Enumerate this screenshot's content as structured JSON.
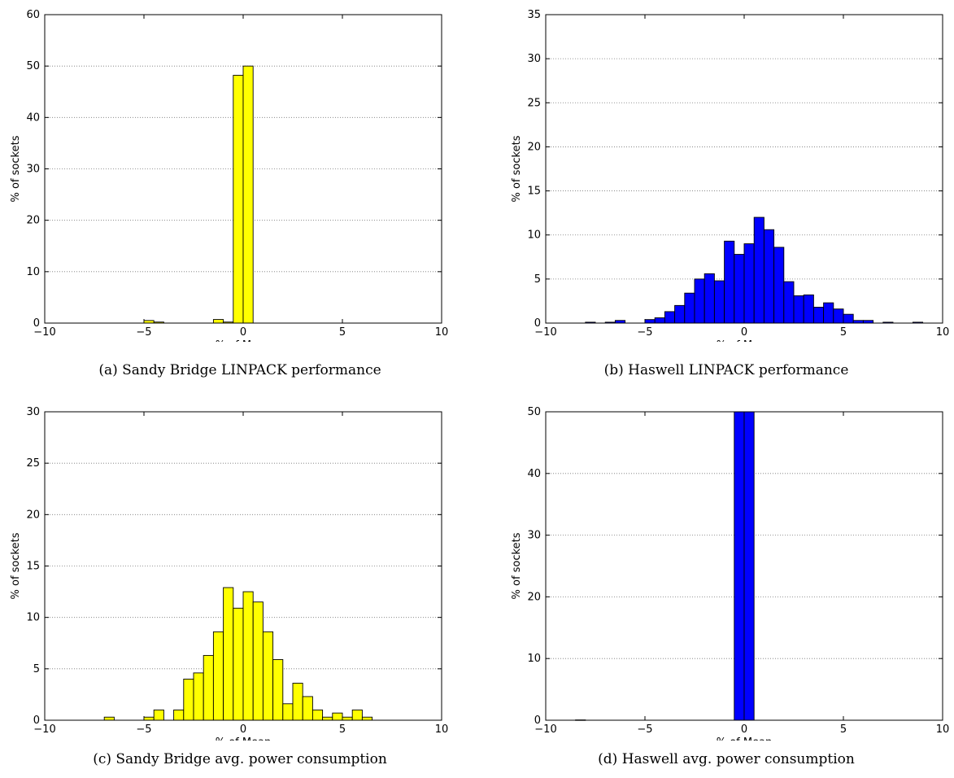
{
  "colors": {
    "yellow": "#ffff00",
    "blue": "#0000ff",
    "edge": "#000000",
    "grid": "#777777"
  },
  "chart_data": [
    {
      "type": "bar",
      "caption": "(a) Sandy Bridge LINPACK performance",
      "xlabel": "% of Mean",
      "ylabel": "% of sockets",
      "xlim": [
        -10,
        10
      ],
      "ylim": [
        0,
        60
      ],
      "xticks": [
        "−10",
        "−5",
        "0",
        "5",
        "10"
      ],
      "yticks": [
        "0",
        "10",
        "20",
        "30",
        "40",
        "50",
        "60"
      ],
      "grid": "horizontal dotted",
      "color": "yellow",
      "bin_width": 0.5,
      "bins": [
        {
          "x0": -5.0,
          "value": 0.5
        },
        {
          "x0": -4.5,
          "value": 0.2
        },
        {
          "x0": -1.5,
          "value": 0.7
        },
        {
          "x0": -1.0,
          "value": 0.2
        },
        {
          "x0": -0.5,
          "value": 48.2
        },
        {
          "x0": 0.0,
          "value": 50.0
        }
      ]
    },
    {
      "type": "bar",
      "caption": "(b) Haswell LINPACK performance",
      "xlabel": "% of Mean",
      "ylabel": "% of sockets",
      "xlim": [
        -10,
        10
      ],
      "ylim": [
        0,
        35
      ],
      "xticks": [
        "−10",
        "−5",
        "0",
        "5",
        "10"
      ],
      "yticks": [
        "0",
        "5",
        "10",
        "15",
        "20",
        "25",
        "30",
        "35"
      ],
      "grid": "horizontal dotted",
      "color": "blue",
      "bin_width": 0.5,
      "bins": [
        {
          "x0": -8.0,
          "value": 0.1
        },
        {
          "x0": -7.0,
          "value": 0.1
        },
        {
          "x0": -6.5,
          "value": 0.3
        },
        {
          "x0": -5.0,
          "value": 0.4
        },
        {
          "x0": -4.5,
          "value": 0.6
        },
        {
          "x0": -4.0,
          "value": 1.3
        },
        {
          "x0": -3.5,
          "value": 2.0
        },
        {
          "x0": -3.0,
          "value": 3.4
        },
        {
          "x0": -2.5,
          "value": 5.0
        },
        {
          "x0": -2.0,
          "value": 5.6
        },
        {
          "x0": -1.5,
          "value": 4.8
        },
        {
          "x0": -1.0,
          "value": 9.3
        },
        {
          "x0": -0.5,
          "value": 7.8
        },
        {
          "x0": 0.0,
          "value": 9.0
        },
        {
          "x0": 0.5,
          "value": 12.0
        },
        {
          "x0": 1.0,
          "value": 10.6
        },
        {
          "x0": 1.5,
          "value": 8.6
        },
        {
          "x0": 2.0,
          "value": 4.7
        },
        {
          "x0": 2.5,
          "value": 3.1
        },
        {
          "x0": 3.0,
          "value": 3.2
        },
        {
          "x0": 3.5,
          "value": 1.8
        },
        {
          "x0": 4.0,
          "value": 2.3
        },
        {
          "x0": 4.5,
          "value": 1.6
        },
        {
          "x0": 5.0,
          "value": 1.0
        },
        {
          "x0": 5.5,
          "value": 0.3
        },
        {
          "x0": 6.0,
          "value": 0.3
        },
        {
          "x0": 7.0,
          "value": 0.1
        },
        {
          "x0": 8.5,
          "value": 0.1
        }
      ]
    },
    {
      "type": "bar",
      "caption": "(c) Sandy Bridge avg. power consumption",
      "xlabel": "% of Mean",
      "ylabel": "% of sockets",
      "xlim": [
        -10,
        10
      ],
      "ylim": [
        0,
        30
      ],
      "xticks": [
        "−10",
        "−5",
        "0",
        "5",
        "10"
      ],
      "yticks": [
        "0",
        "5",
        "10",
        "15",
        "20",
        "25",
        "30"
      ],
      "grid": "horizontal dotted",
      "color": "yellow",
      "bin_width": 0.5,
      "bins": [
        {
          "x0": -7.0,
          "value": 0.3
        },
        {
          "x0": -5.0,
          "value": 0.3
        },
        {
          "x0": -4.5,
          "value": 1.0
        },
        {
          "x0": -3.5,
          "value": 1.0
        },
        {
          "x0": -3.0,
          "value": 4.0
        },
        {
          "x0": -2.5,
          "value": 4.6
        },
        {
          "x0": -2.0,
          "value": 6.3
        },
        {
          "x0": -1.5,
          "value": 8.6
        },
        {
          "x0": -1.0,
          "value": 12.9
        },
        {
          "x0": -0.5,
          "value": 10.9
        },
        {
          "x0": 0.0,
          "value": 12.5
        },
        {
          "x0": 0.5,
          "value": 11.5
        },
        {
          "x0": 1.0,
          "value": 8.6
        },
        {
          "x0": 1.5,
          "value": 5.9
        },
        {
          "x0": 2.0,
          "value": 1.6
        },
        {
          "x0": 2.5,
          "value": 3.6
        },
        {
          "x0": 3.0,
          "value": 2.3
        },
        {
          "x0": 3.5,
          "value": 1.0
        },
        {
          "x0": 4.0,
          "value": 0.3
        },
        {
          "x0": 4.5,
          "value": 0.7
        },
        {
          "x0": 5.0,
          "value": 0.3
        },
        {
          "x0": 5.5,
          "value": 1.0
        },
        {
          "x0": 6.0,
          "value": 0.3
        }
      ]
    },
    {
      "type": "bar",
      "caption": "(d) Haswell avg. power consumption",
      "xlabel": "% of Mean",
      "ylabel": "% of sockets",
      "xlim": [
        -10,
        10
      ],
      "ylim": [
        0,
        50
      ],
      "xticks": [
        "−10",
        "−5",
        "0",
        "5",
        "10"
      ],
      "yticks": [
        "0",
        "10",
        "20",
        "30",
        "40",
        "50"
      ],
      "grid": "horizontal dotted",
      "color": "blue",
      "bin_width": 0.5,
      "bins": [
        {
          "x0": -8.5,
          "value": 0.05
        },
        {
          "x0": -0.5,
          "value": 50.0
        },
        {
          "x0": 0.0,
          "value": 50.0
        }
      ]
    }
  ]
}
